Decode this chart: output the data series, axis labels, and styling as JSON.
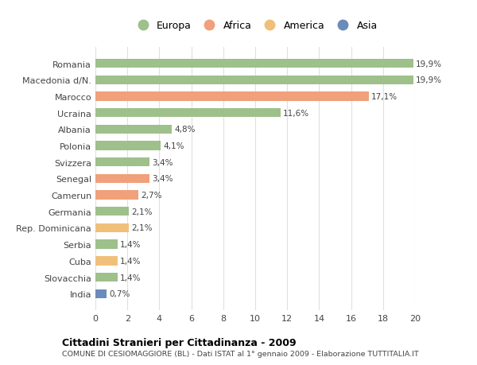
{
  "categories": [
    "India",
    "Slovacchia",
    "Cuba",
    "Serbia",
    "Rep. Dominicana",
    "Germania",
    "Camerun",
    "Senegal",
    "Svizzera",
    "Polonia",
    "Albania",
    "Ucraina",
    "Marocco",
    "Macedonia d/N.",
    "Romania"
  ],
  "values": [
    0.7,
    1.4,
    1.4,
    1.4,
    2.1,
    2.1,
    2.7,
    3.4,
    3.4,
    4.1,
    4.8,
    11.6,
    17.1,
    19.9,
    19.9
  ],
  "colors": [
    "#6b8cba",
    "#9ec08a",
    "#f0c07a",
    "#9ec08a",
    "#f0c07a",
    "#9ec08a",
    "#f0a07a",
    "#f0a07a",
    "#9ec08a",
    "#9ec08a",
    "#9ec08a",
    "#9ec08a",
    "#f0a07a",
    "#9ec08a",
    "#9ec08a"
  ],
  "legend_labels": [
    "Europa",
    "Africa",
    "America",
    "Asia"
  ],
  "legend_colors": [
    "#9ec08a",
    "#f0a07a",
    "#f0c07a",
    "#6b8cba"
  ],
  "title": "Cittadini Stranieri per Cittadinanza - 2009",
  "subtitle": "COMUNE DI CESIOMAGGIORE (BL) - Dati ISTAT al 1° gennaio 2009 - Elaborazione TUTTITALIA.IT",
  "xlim": [
    0,
    20
  ],
  "xticks": [
    0,
    2,
    4,
    6,
    8,
    10,
    12,
    14,
    16,
    18,
    20
  ],
  "background_color": "#ffffff",
  "grid_color": "#e0e0e0",
  "bar_height": 0.55
}
